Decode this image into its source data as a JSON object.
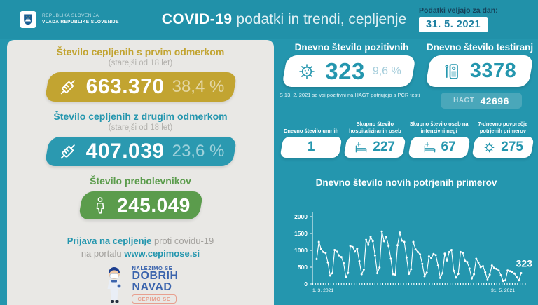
{
  "header": {
    "gov_line1": "REPUBLIKA SLOVENIJA",
    "gov_line2": "VLADA REPUBLIKE SLOVENIJE",
    "title_strong": "COVID-19",
    "title_rest": " podatki in trendi, cepljenje",
    "date_label": "Podatki veljajo za dan:",
    "date_value": "31. 5. 2021"
  },
  "left_panel": {
    "blocks": [
      {
        "title": "Število cepljenih s prvim odmerkom",
        "subtitle": "(starejši od 18 let)",
        "value": "663.370",
        "percent": "38,4 %",
        "color": "#c2a431",
        "icon": "syringe-icon"
      },
      {
        "title": "Število cepljenih z drugim odmerkom",
        "subtitle": "(starejši od 18 let)",
        "value": "407.039",
        "percent": "23,6 %",
        "color": "#2b99b0",
        "icon": "syringe-icon"
      },
      {
        "title": "Število prebolevnikov",
        "value": "245.049",
        "color": "#5b9c4c",
        "icon": "person-icon"
      }
    ],
    "signup": {
      "bold1": "Prijava na cepljenje",
      "rest1": " proti covidu-19",
      "rest2": "na portalu ",
      "link": "www.cepimose.si"
    },
    "campaign": {
      "line1": "NALEZIMO SE",
      "line2": "DOBRIH",
      "line3": "NAVAD",
      "badge": "CEPIMO SE"
    }
  },
  "right_panel": {
    "positive": {
      "title": "Dnevno število pozitivnih",
      "value": "323",
      "percent": "9,6 %",
      "icon": "virus-icon",
      "note": "S 13. 2. 2021 se vsi pozitivni na HAGT potrjujejo s PCR testi"
    },
    "tests": {
      "title": "Dnevno število testiranj",
      "value": "3378",
      "icon": "test-kit-icon",
      "hagt_label": "HAGT",
      "hagt_value": "42696"
    },
    "stats": [
      {
        "label": "Dnevno število umrlih",
        "value": "1",
        "icon": "none"
      },
      {
        "label": "Skupno število hospitaliziranih oseb",
        "value": "227",
        "icon": "hospital-bed-icon"
      },
      {
        "label": "Skupno število oseb na intenzivni negi",
        "value": "67",
        "icon": "icu-bed-icon"
      },
      {
        "label": "7-dnevno povprečje potrjenih primerov",
        "value": "275",
        "icon": "virus-icon"
      }
    ]
  },
  "chart_data": {
    "type": "line",
    "title": "Dnevno število novih potrjenih primerov",
    "xlabel": "",
    "ylabel": "",
    "ylim": [
      0,
      2000
    ],
    "yticks": [
      0,
      500,
      1000,
      1500,
      2000
    ],
    "x_start_label": "1. 3. 2021",
    "x_end_label": "31. 5. 2021",
    "end_label": "323",
    "legend": "none",
    "grid": false,
    "line_color": "#ffffff",
    "values": [
      740,
      1250,
      1040,
      950,
      920,
      640,
      250,
      320,
      1010,
      960,
      850,
      800,
      620,
      200,
      330,
      1130,
      1100,
      960,
      1050,
      680,
      290,
      430,
      1310,
      1160,
      1400,
      1270,
      850,
      320,
      490,
      1560,
      1270,
      1400,
      1130,
      750,
      290,
      280,
      1150,
      1530,
      1290,
      1250,
      790,
      300,
      440,
      1250,
      1030,
      950,
      880,
      600,
      230,
      340,
      820,
      770,
      890,
      860,
      550,
      180,
      320,
      900,
      700,
      950,
      1010,
      390,
      190,
      300,
      950,
      920,
      690,
      650,
      460,
      160,
      290,
      750,
      640,
      500,
      530,
      350,
      120,
      280,
      550,
      480,
      450,
      400,
      260,
      90,
      110,
      400,
      380,
      350,
      310,
      200,
      110,
      323
    ]
  },
  "colors": {
    "background_teal": "#2496ae",
    "header_teal": "#2191a9",
    "panel_gray": "#e9e8e5",
    "gold": "#c2a431",
    "teal": "#2b99b0",
    "green": "#5b9c4c",
    "navy": "#16425a",
    "campaign_blue": "#3b64ad",
    "badge_salmon": "#e8a08f",
    "hagt_bg": "#4aa7ba",
    "chart_line": "#ffffff"
  }
}
